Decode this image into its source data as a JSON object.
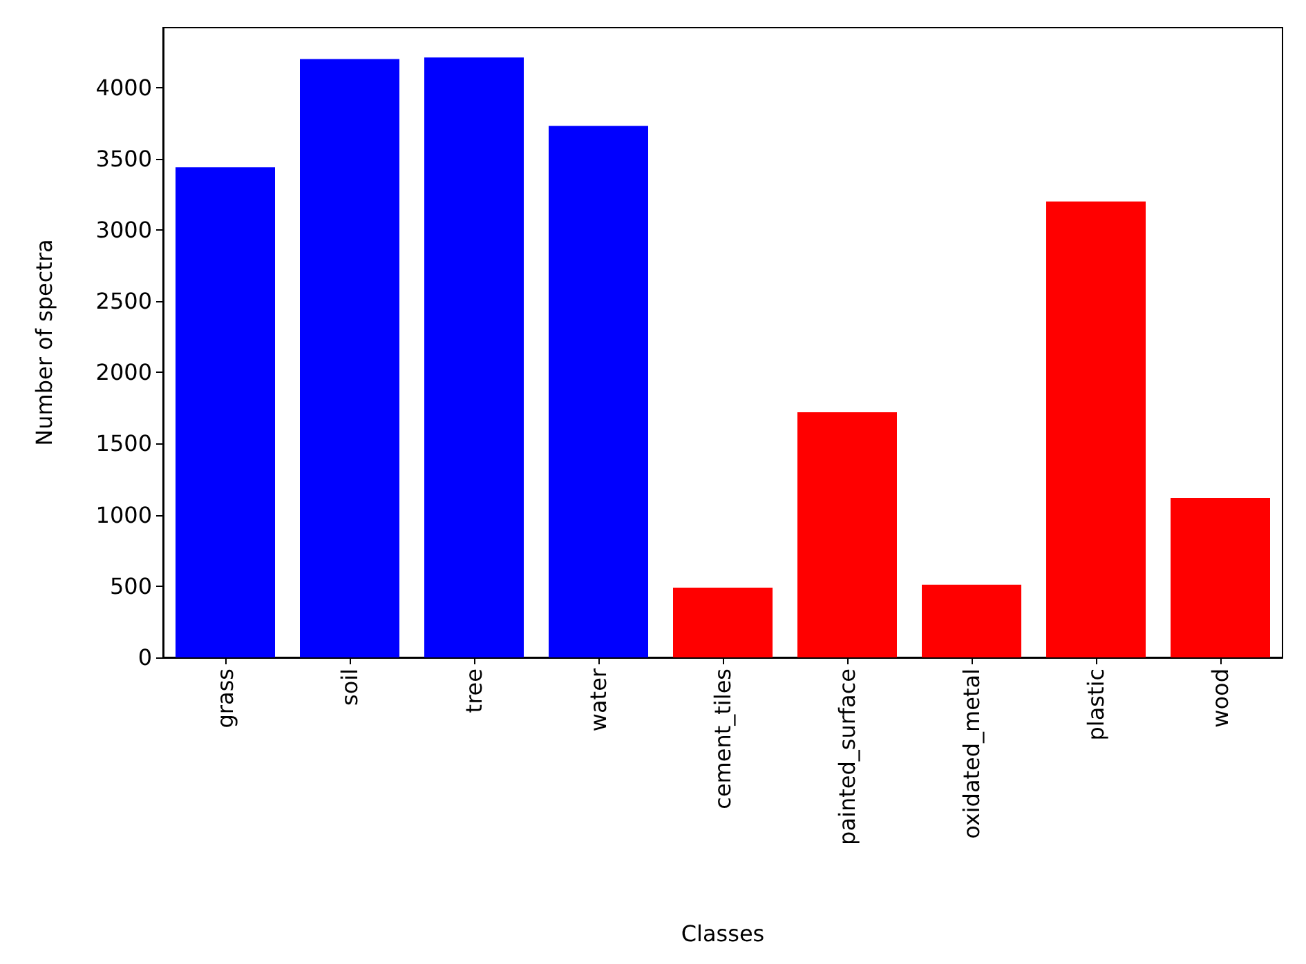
{
  "chart_data": {
    "type": "bar",
    "xlabel": "Classes",
    "ylabel": "Number of spectra",
    "categories": [
      "grass",
      "soil",
      "tree",
      "water",
      "cement_tiles",
      "painted_surface",
      "oxidated_metal",
      "plastic",
      "wood"
    ],
    "values": [
      3440,
      4200,
      4210,
      3730,
      490,
      1720,
      510,
      3200,
      1120
    ],
    "colors": [
      "#0000ff",
      "#0000ff",
      "#0000ff",
      "#0000ff",
      "#ff0000",
      "#ff0000",
      "#ff0000",
      "#ff0000",
      "#ff0000"
    ],
    "ylim": [
      0,
      4420
    ],
    "yticks": [
      0,
      500,
      1000,
      1500,
      2000,
      2500,
      3000,
      3500,
      4000
    ],
    "grid": false
  }
}
